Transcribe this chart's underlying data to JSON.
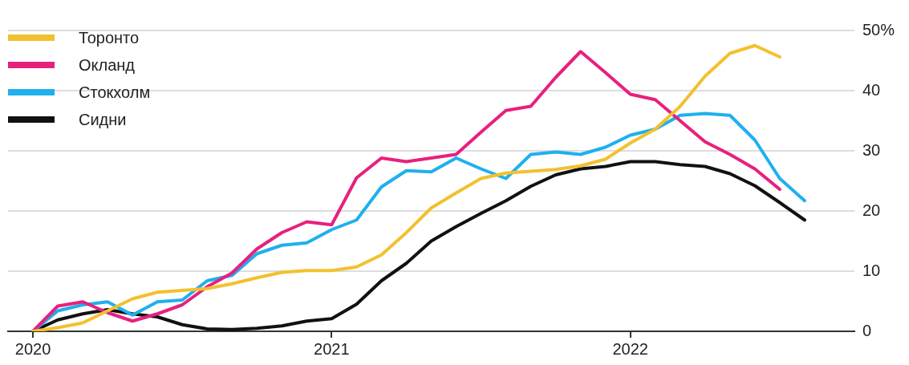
{
  "chart_data": {
    "type": "line",
    "x": [
      "2020-01",
      "2020-02",
      "2020-03",
      "2020-04",
      "2020-05",
      "2020-06",
      "2020-07",
      "2020-08",
      "2020-09",
      "2020-10",
      "2020-11",
      "2020-12",
      "2021-01",
      "2021-02",
      "2021-03",
      "2021-04",
      "2021-05",
      "2021-06",
      "2021-07",
      "2021-08",
      "2021-09",
      "2021-10",
      "2021-11",
      "2021-12",
      "2022-01",
      "2022-02",
      "2022-03",
      "2022-04",
      "2022-05",
      "2022-06",
      "2022-07",
      "2022-08"
    ],
    "xlim": [
      "2019-12",
      "2022-10"
    ],
    "xticks": [
      "2020",
      "2021",
      "2022"
    ],
    "ylim": [
      0,
      50
    ],
    "yticks": [
      0,
      10,
      20,
      30,
      40,
      {
        "value": 50,
        "label": "50%"
      }
    ],
    "grid": "y",
    "legend": "top left",
    "series": [
      {
        "name": "Торонто",
        "color": "#f2c12e",
        "values": [
          0,
          0.6,
          1.4,
          3.4,
          5.4,
          6.5,
          6.8,
          7.1,
          7.9,
          8.9,
          9.8,
          10.1,
          10.1,
          10.7,
          12.7,
          16.4,
          20.5,
          23.0,
          25.4,
          26.3,
          26.6,
          26.9,
          27.5,
          28.6,
          31.3,
          33.6,
          37.4,
          42.4,
          46.2,
          47.5,
          45.6,
          null
        ]
      },
      {
        "name": "Окланд",
        "color": "#e8207d",
        "values": [
          0,
          4.2,
          4.9,
          3.1,
          1.7,
          2.9,
          4.4,
          7.4,
          9.7,
          13.7,
          16.4,
          18.2,
          17.7,
          25.5,
          28.8,
          28.2,
          28.8,
          29.4,
          33.1,
          36.7,
          37.4,
          42.2,
          46.5,
          43.0,
          39.4,
          38.5,
          35.0,
          31.5,
          29.4,
          27.0,
          23.6,
          null
        ]
      },
      {
        "name": "Стокхолм",
        "color": "#1fb0ee",
        "values": [
          0,
          3.4,
          4.4,
          4.9,
          2.7,
          4.9,
          5.2,
          8.4,
          9.3,
          12.9,
          14.3,
          14.7,
          16.9,
          18.5,
          24.0,
          26.7,
          26.5,
          28.8,
          27.0,
          25.4,
          29.4,
          29.8,
          29.4,
          30.6,
          32.6,
          33.6,
          35.9,
          36.2,
          35.9,
          31.8,
          25.4,
          21.7
        ]
      },
      {
        "name": "Сидни",
        "color": "#111111",
        "values": [
          0,
          1.9,
          2.9,
          3.6,
          2.9,
          2.4,
          1.1,
          0.4,
          0.3,
          0.5,
          0.9,
          1.7,
          2.1,
          4.5,
          8.4,
          11.3,
          15.0,
          17.4,
          19.6,
          21.7,
          24.1,
          26.0,
          27.0,
          27.4,
          28.2,
          28.2,
          27.7,
          27.4,
          26.2,
          24.2,
          21.4,
          18.5
        ]
      }
    ]
  }
}
